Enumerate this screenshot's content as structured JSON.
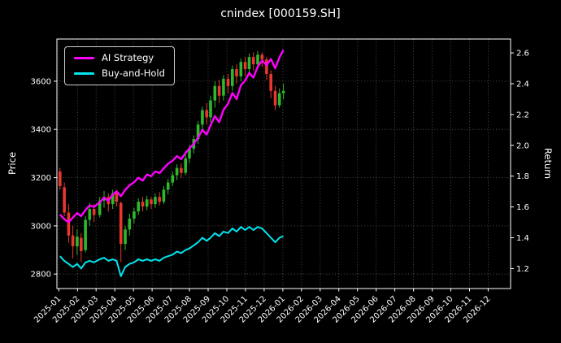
{
  "figure": {
    "background": "#000000",
    "text_color": "#ffffff",
    "grid_color": "#5f5f5f"
  },
  "chart_data": {
    "type": "candlestick+line",
    "title": "cnindex [000159.SH]",
    "left_axis": {
      "label": "Price",
      "ticks": [
        2800,
        3000,
        3200,
        3400,
        3600
      ],
      "range": [
        2740,
        3775
      ]
    },
    "right_axis": {
      "label": "Return",
      "ticks": [
        1.2,
        1.4,
        1.6,
        1.8,
        2.0,
        2.2,
        2.4,
        2.6
      ],
      "range": [
        1.07,
        2.69
      ]
    },
    "x_axis": {
      "tick_labels": [
        "2025-01",
        "2025-02",
        "2025-03",
        "2025-04",
        "2025-05",
        "2025-06",
        "2025-07",
        "2025-08",
        "2025-09",
        "2025-10",
        "2025-11",
        "2025-12",
        "2026-01",
        "2026-02",
        "2026-03",
        "2026-04",
        "2026-05",
        "2026-06",
        "2026-07",
        "2026-08",
        "2026-09",
        "2026-10",
        "2026-11",
        "2026-12"
      ],
      "range_months": [
        -0.1,
        24.2
      ]
    },
    "legend": {
      "location": "upper-left",
      "border_color": "#cccccc",
      "items": [
        {
          "label": "AI Strategy",
          "color": "#ff00ff"
        },
        {
          "label": "Buy-and-Hold",
          "color": "#00e5ee"
        }
      ]
    },
    "dates": [
      "2025-01-03",
      "2025-01-10",
      "2025-01-17",
      "2025-01-24",
      "2025-01-31",
      "2025-02-07",
      "2025-02-14",
      "2025-02-21",
      "2025-02-28",
      "2025-03-07",
      "2025-03-14",
      "2025-03-21",
      "2025-03-28",
      "2025-04-04",
      "2025-04-11",
      "2025-04-18",
      "2025-04-25",
      "2025-05-02",
      "2025-05-09",
      "2025-05-16",
      "2025-05-23",
      "2025-05-30",
      "2025-06-06",
      "2025-06-13",
      "2025-06-20",
      "2025-06-27",
      "2025-07-04",
      "2025-07-11",
      "2025-07-18",
      "2025-07-25",
      "2025-08-01",
      "2025-08-08",
      "2025-08-15",
      "2025-08-22",
      "2025-08-29",
      "2025-09-05",
      "2025-09-12",
      "2025-09-19",
      "2025-09-26",
      "2025-10-03",
      "2025-10-10",
      "2025-10-17",
      "2025-10-24",
      "2025-10-31",
      "2025-11-07",
      "2025-11-14",
      "2025-11-21",
      "2025-11-28",
      "2025-12-05",
      "2025-12-12",
      "2025-12-19",
      "2025-12-26",
      "2026-01-02"
    ],
    "candles": {
      "up_color": "#2eb82e",
      "down_color": "#e8382d",
      "open": [
        3225,
        3160,
        3055,
        2960,
        2915,
        2950,
        2900,
        3025,
        3070,
        3045,
        3105,
        3120,
        3090,
        3135,
        3095,
        2925,
        2985,
        3030,
        3060,
        3100,
        3080,
        3110,
        3090,
        3120,
        3100,
        3150,
        3180,
        3210,
        3240,
        3220,
        3280,
        3320,
        3360,
        3420,
        3480,
        3450,
        3520,
        3580,
        3540,
        3610,
        3580,
        3650,
        3620,
        3680,
        3650,
        3700,
        3670,
        3710,
        3690,
        3630,
        3560,
        3500,
        3550
      ],
      "high": [
        3240,
        3180,
        3090,
        3000,
        2985,
        2970,
        3040,
        3095,
        3090,
        3120,
        3145,
        3135,
        3150,
        3150,
        3100,
        3000,
        3050,
        3075,
        3115,
        3120,
        3125,
        3120,
        3135,
        3140,
        3165,
        3195,
        3225,
        3255,
        3260,
        3295,
        3335,
        3375,
        3435,
        3495,
        3510,
        3540,
        3600,
        3605,
        3625,
        3630,
        3665,
        3670,
        3695,
        3700,
        3715,
        3720,
        3725,
        3720,
        3700,
        3645,
        3580,
        3570,
        3590
      ],
      "low": [
        3150,
        3040,
        2930,
        2865,
        2880,
        2850,
        2890,
        3000,
        3015,
        3035,
        3075,
        3060,
        3070,
        3080,
        2850,
        2900,
        2960,
        3010,
        3045,
        3060,
        3065,
        3070,
        3075,
        3085,
        3090,
        3130,
        3165,
        3190,
        3200,
        3210,
        3260,
        3300,
        3340,
        3400,
        3420,
        3430,
        3490,
        3510,
        3520,
        3550,
        3560,
        3590,
        3600,
        3620,
        3630,
        3645,
        3650,
        3660,
        3605,
        3530,
        3480,
        3490,
        3525
      ],
      "close": [
        3165,
        3055,
        2960,
        2915,
        2955,
        2895,
        3025,
        3070,
        3045,
        3105,
        3120,
        3090,
        3135,
        3100,
        2925,
        2985,
        3030,
        3060,
        3100,
        3080,
        3110,
        3090,
        3120,
        3100,
        3150,
        3180,
        3210,
        3240,
        3220,
        3280,
        3320,
        3360,
        3420,
        3480,
        3450,
        3520,
        3580,
        3540,
        3610,
        3580,
        3650,
        3620,
        3680,
        3650,
        3700,
        3670,
        3710,
        3690,
        3630,
        3560,
        3500,
        3550,
        3560
      ]
    },
    "series": [
      {
        "name": "AI Strategy",
        "axis": "return",
        "color": "#ff00ff",
        "values": [
          1.55,
          1.52,
          1.5,
          1.53,
          1.56,
          1.54,
          1.58,
          1.61,
          1.6,
          1.63,
          1.66,
          1.64,
          1.68,
          1.7,
          1.67,
          1.71,
          1.74,
          1.76,
          1.79,
          1.77,
          1.81,
          1.8,
          1.83,
          1.82,
          1.85,
          1.88,
          1.9,
          1.93,
          1.91,
          1.95,
          1.98,
          2.01,
          2.05,
          2.1,
          2.07,
          2.13,
          2.19,
          2.15,
          2.23,
          2.27,
          2.34,
          2.3,
          2.39,
          2.42,
          2.47,
          2.44,
          2.51,
          2.55,
          2.52,
          2.56,
          2.5,
          2.57,
          2.62
        ]
      },
      {
        "name": "Buy-and-Hold",
        "axis": "return",
        "color": "#00e5ee",
        "values": [
          1.28,
          1.25,
          1.23,
          1.21,
          1.23,
          1.2,
          1.24,
          1.25,
          1.24,
          1.26,
          1.27,
          1.25,
          1.26,
          1.25,
          1.15,
          1.21,
          1.23,
          1.24,
          1.26,
          1.25,
          1.26,
          1.25,
          1.26,
          1.25,
          1.27,
          1.28,
          1.29,
          1.31,
          1.3,
          1.32,
          1.33,
          1.35,
          1.37,
          1.4,
          1.38,
          1.4,
          1.43,
          1.41,
          1.44,
          1.43,
          1.46,
          1.44,
          1.47,
          1.45,
          1.47,
          1.45,
          1.47,
          1.46,
          1.43,
          1.4,
          1.37,
          1.4,
          1.41
        ]
      }
    ]
  }
}
